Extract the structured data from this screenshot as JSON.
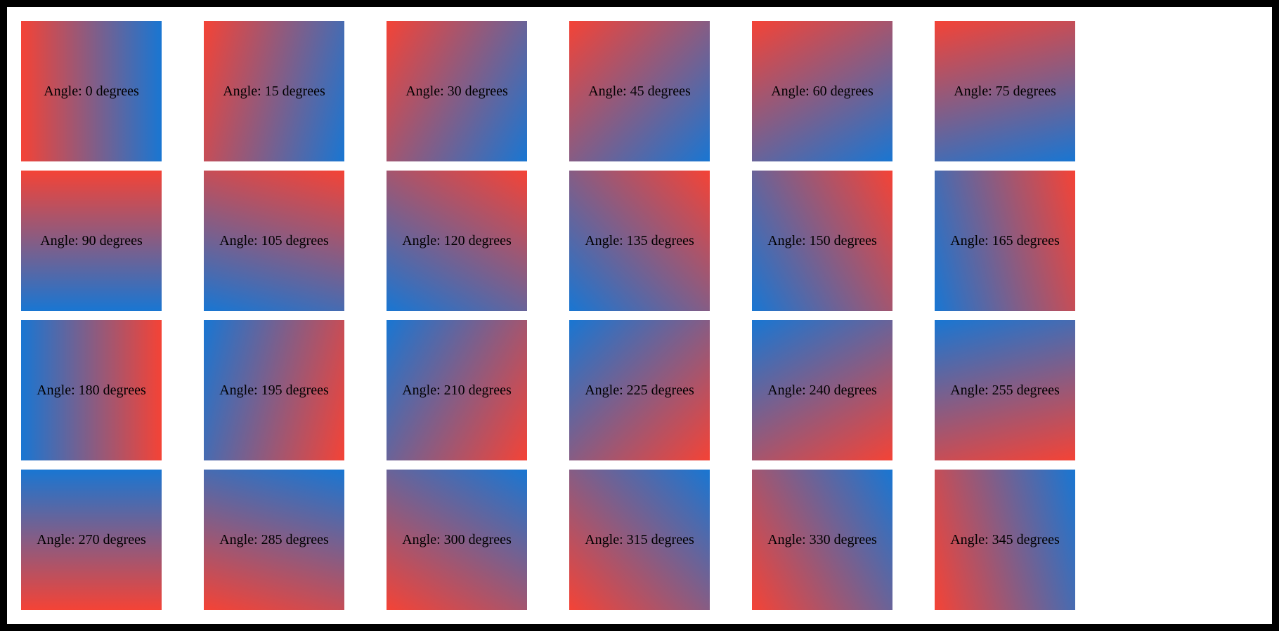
{
  "page": {
    "frame_color": "#000000",
    "background_color": "#ffffff"
  },
  "gradient": {
    "start_color": "#f44336",
    "end_color": "#1976d2",
    "label_text_color": "#000000"
  },
  "tiles": [
    {
      "angle": 0,
      "label": "Angle: 0 degrees"
    },
    {
      "angle": 15,
      "label": "Angle: 15 degrees"
    },
    {
      "angle": 30,
      "label": "Angle: 30 degrees"
    },
    {
      "angle": 45,
      "label": "Angle: 45 degrees"
    },
    {
      "angle": 60,
      "label": "Angle: 60 degrees"
    },
    {
      "angle": 75,
      "label": "Angle: 75 degrees"
    },
    {
      "angle": 90,
      "label": "Angle: 90 degrees"
    },
    {
      "angle": 105,
      "label": "Angle: 105 degrees"
    },
    {
      "angle": 120,
      "label": "Angle: 120 degrees"
    },
    {
      "angle": 135,
      "label": "Angle: 135 degrees"
    },
    {
      "angle": 150,
      "label": "Angle: 150 degrees"
    },
    {
      "angle": 165,
      "label": "Angle: 165 degrees"
    },
    {
      "angle": 180,
      "label": "Angle: 180 degrees"
    },
    {
      "angle": 195,
      "label": "Angle: 195 degrees"
    },
    {
      "angle": 210,
      "label": "Angle: 210 degrees"
    },
    {
      "angle": 225,
      "label": "Angle: 225 degrees"
    },
    {
      "angle": 240,
      "label": "Angle: 240 degrees"
    },
    {
      "angle": 255,
      "label": "Angle: 255 degrees"
    },
    {
      "angle": 270,
      "label": "Angle: 270 degrees"
    },
    {
      "angle": 285,
      "label": "Angle: 285 degrees"
    },
    {
      "angle": 300,
      "label": "Angle: 300 degrees"
    },
    {
      "angle": 315,
      "label": "Angle: 315 degrees"
    },
    {
      "angle": 330,
      "label": "Angle: 330 degrees"
    },
    {
      "angle": 345,
      "label": "Angle: 345 degrees"
    }
  ]
}
